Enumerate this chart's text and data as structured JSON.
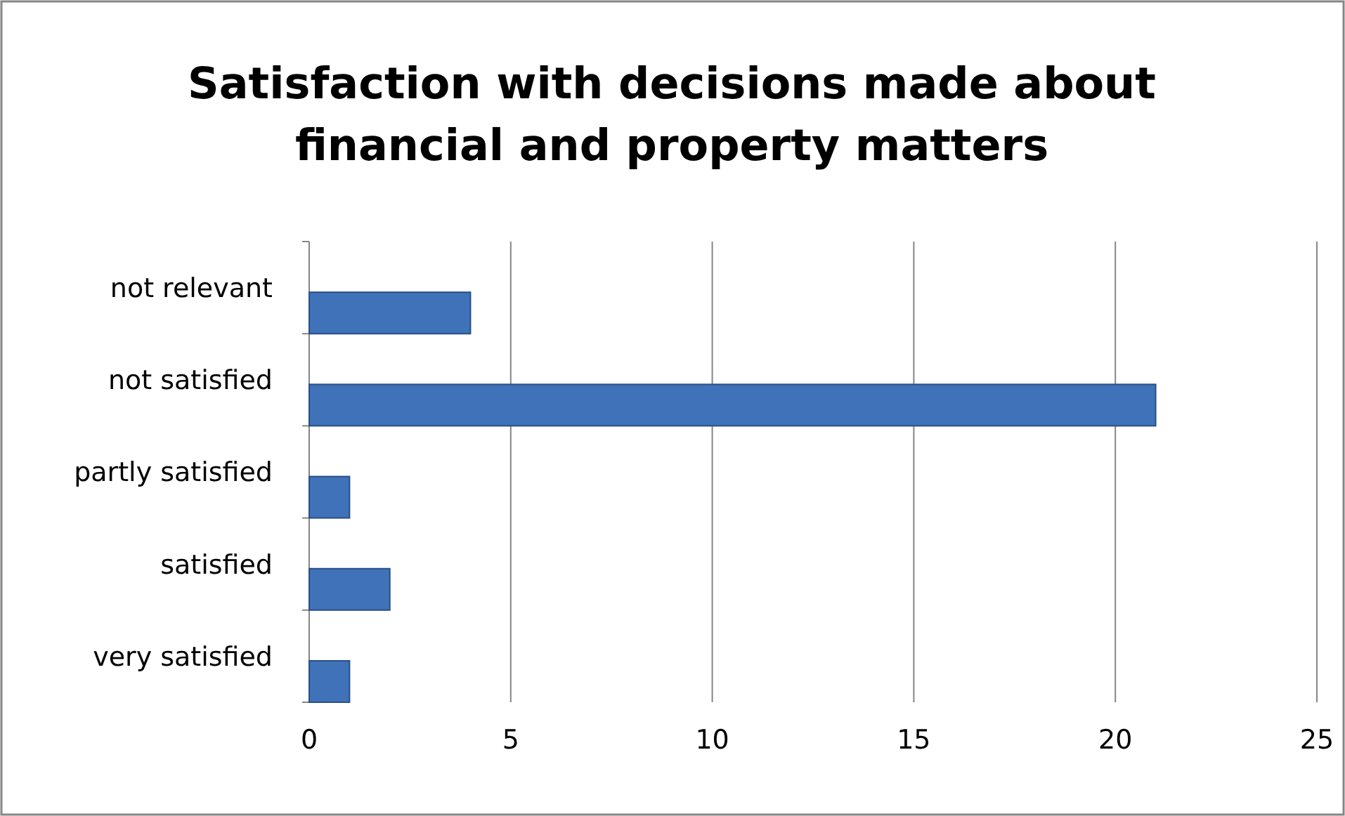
{
  "chart_data": {
    "type": "bar",
    "orientation": "horizontal",
    "title": "Satisfaction with decisions made about\nfinancial and property matters",
    "categories": [
      "not relevant",
      "not satisfied",
      "partly satisfied",
      "satisfied",
      "very satisfied"
    ],
    "values": [
      4,
      21,
      1,
      2,
      1
    ],
    "color": "#3f72b8",
    "xlim": [
      0,
      25
    ],
    "xticks": [
      0,
      5,
      10,
      15,
      20,
      25
    ],
    "grid": "x"
  }
}
